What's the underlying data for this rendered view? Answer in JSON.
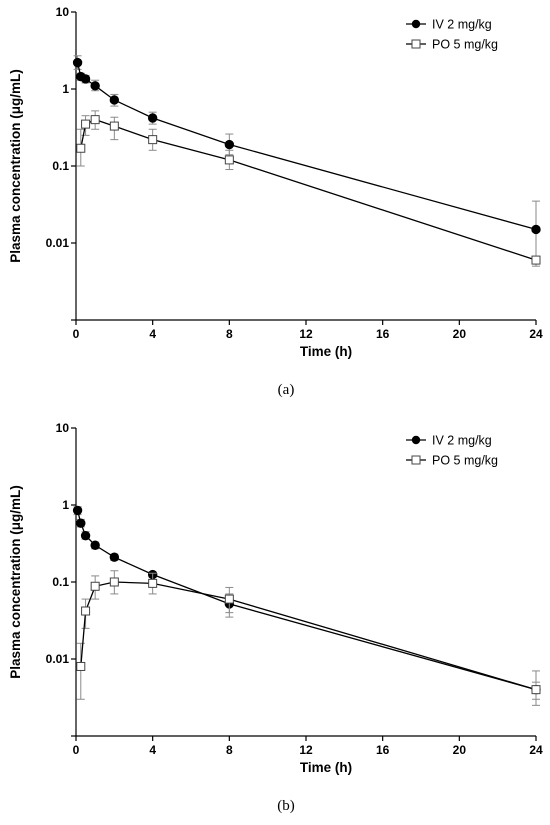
{
  "colors": {
    "iv_marker": "#000000",
    "po_marker": "#ffffff",
    "error_bar": "#8a8a8a",
    "line": "#000000"
  },
  "chart_data": [
    {
      "type": "line",
      "panel_label": "(a)",
      "xlabel": "Time (h)",
      "ylabel": "Plasma concentration (μg/mL)",
      "x_scale": "linear",
      "y_scale": "log",
      "xlim": [
        0,
        24
      ],
      "ylim": [
        0.001,
        10
      ],
      "xticks": [
        0,
        4,
        8,
        12,
        16,
        20,
        24
      ],
      "yticks": [
        0.01,
        0.1,
        1,
        10
      ],
      "ytick_labels": [
        "0.01",
        "0.1",
        "1",
        "10"
      ],
      "legend_position": "top-right",
      "series": [
        {
          "name": "IV 2 mg/kg",
          "marker": "filled-circle",
          "x": [
            0.083,
            0.25,
            0.5,
            1,
            2,
            4,
            8,
            24
          ],
          "y": [
            2.2,
            1.45,
            1.35,
            1.1,
            0.72,
            0.42,
            0.19,
            0.015
          ],
          "err_upper": [
            2.7,
            1.6,
            1.5,
            1.3,
            0.85,
            0.5,
            0.26,
            0.035
          ],
          "err_lower": [
            1.8,
            1.3,
            1.2,
            0.95,
            0.6,
            0.35,
            0.14,
            0.005
          ]
        },
        {
          "name": "PO 5 mg/kg",
          "marker": "open-square",
          "x": [
            0.25,
            0.5,
            1,
            2,
            4,
            8,
            24
          ],
          "y": [
            0.17,
            0.35,
            0.4,
            0.33,
            0.22,
            0.12,
            0.006
          ],
          "err_upper": [
            0.3,
            0.45,
            0.52,
            0.43,
            0.3,
            0.16,
            0.0065
          ],
          "err_lower": [
            0.1,
            0.25,
            0.3,
            0.22,
            0.16,
            0.09,
            0.0055
          ]
        }
      ]
    },
    {
      "type": "line",
      "panel_label": "(b)",
      "xlabel": "Time (h)",
      "ylabel": "Plasma concentration (μg/mL)",
      "x_scale": "linear",
      "y_scale": "log",
      "xlim": [
        0,
        24
      ],
      "ylim": [
        0.001,
        10
      ],
      "xticks": [
        0,
        4,
        8,
        12,
        16,
        20,
        24
      ],
      "yticks": [
        0.01,
        0.1,
        1,
        10
      ],
      "ytick_labels": [
        "0.01",
        "0.1",
        "1",
        "10"
      ],
      "legend_position": "top-right",
      "series": [
        {
          "name": "IV 2 mg/kg",
          "marker": "filled-circle",
          "x": [
            0.083,
            0.25,
            0.5,
            1,
            2,
            4,
            8,
            24
          ],
          "y": [
            0.85,
            0.58,
            0.4,
            0.3,
            0.21,
            0.125,
            0.052,
            0.004
          ],
          "err_upper": [
            0.95,
            0.65,
            0.45,
            0.33,
            0.23,
            0.135,
            0.07,
            0.005
          ],
          "err_lower": [
            0.75,
            0.52,
            0.36,
            0.27,
            0.19,
            0.115,
            0.035,
            0.003
          ]
        },
        {
          "name": "PO 5 mg/kg",
          "marker": "open-square",
          "x": [
            0.25,
            0.5,
            1,
            2,
            4,
            8,
            24
          ],
          "y": [
            0.008,
            0.042,
            0.088,
            0.1,
            0.096,
            0.06,
            0.004
          ],
          "err_upper": [
            0.016,
            0.06,
            0.12,
            0.14,
            0.13,
            0.085,
            0.007
          ],
          "err_lower": [
            0.003,
            0.025,
            0.06,
            0.07,
            0.07,
            0.04,
            0.0025
          ]
        }
      ]
    }
  ]
}
